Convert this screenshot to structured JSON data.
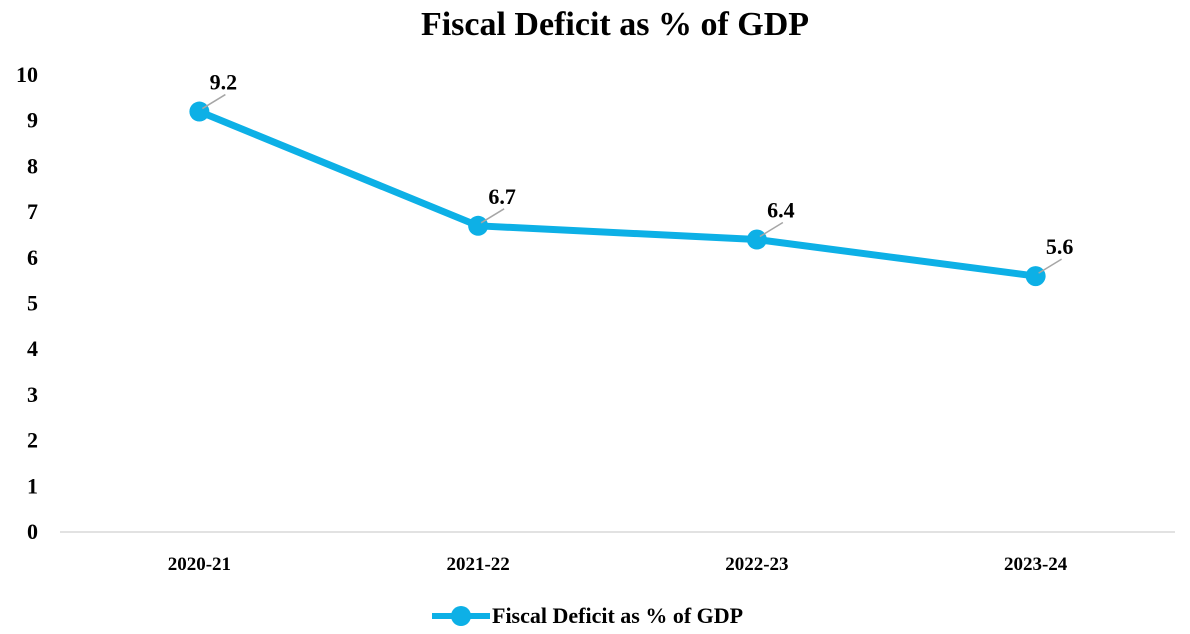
{
  "chart_data": {
    "type": "line",
    "title": "Fiscal Deficit as % of GDP",
    "categories": [
      "2020-21",
      "2021-22",
      "2022-23",
      "2023-24"
    ],
    "series": [
      {
        "name": "Fiscal Deficit as % of GDP",
        "values": [
          9.2,
          6.7,
          6.4,
          5.6
        ]
      }
    ],
    "y_ticks": [
      "0",
      "1",
      "2",
      "3",
      "4",
      "5",
      "6",
      "7",
      "8",
      "9",
      "10"
    ],
    "data_labels": [
      "9.2",
      "6.7",
      "6.4",
      "5.6"
    ],
    "ylim": [
      0,
      10
    ],
    "grid": false,
    "legend_position": "bottom",
    "colors": {
      "series": "#0db0e6",
      "leader": "#a6a6a6",
      "axis": "#d9d9d9"
    }
  }
}
